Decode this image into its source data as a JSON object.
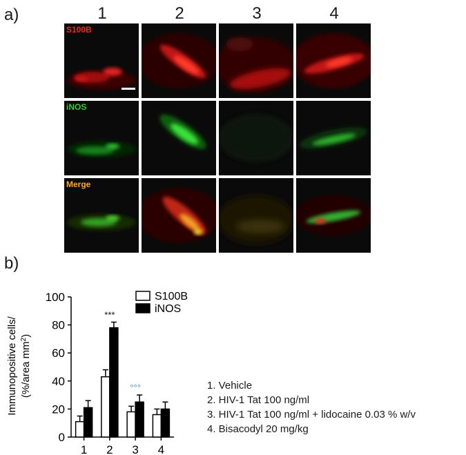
{
  "panel_a_label": "a)",
  "panel_b_label": "b)",
  "column_numbers": [
    "1",
    "2",
    "3",
    "4"
  ],
  "row_labels": [
    {
      "text": "S100B",
      "color": "#ff2020"
    },
    {
      "text": "iNOS",
      "color": "#33cc33"
    },
    {
      "text": "Merge",
      "color": "#ffaa22"
    }
  ],
  "colors": {
    "s100b": "#e8281c",
    "inos": "#2fd02f",
    "merge_yellow": "#f0c020"
  },
  "chart_data": {
    "type": "bar",
    "categories": [
      "1",
      "2",
      "3",
      "4"
    ],
    "series": [
      {
        "name": "S100B",
        "values": [
          11,
          43,
          18,
          16
        ],
        "errors": [
          4,
          5,
          4,
          4
        ],
        "fill": "#ffffff"
      },
      {
        "name": "iNOS",
        "values": [
          21,
          78,
          25,
          20
        ],
        "errors": [
          5,
          4,
          5,
          5
        ],
        "fill": "#000000"
      }
    ],
    "ylabel_line1": "Immunopositive cells/",
    "ylabel_line2": "(%/area mm",
    "ylabel_sup": "2",
    "ylabel_close": ")",
    "ylim": [
      0,
      100
    ],
    "yticks": [
      0,
      20,
      40,
      60,
      80,
      100
    ],
    "annotations": [
      {
        "category": "2",
        "text": "***"
      },
      {
        "category": "3",
        "text": "°°°"
      }
    ],
    "legend_position": "top-right"
  },
  "group_legend": [
    "1. Vehicle",
    "2. HIV-1 Tat 100 ng/ml",
    "3. HIV-1 Tat 100 ng/ml + lidocaine  0.03 % w/v",
    "4. Bisacodyl 20 mg/kg"
  ]
}
